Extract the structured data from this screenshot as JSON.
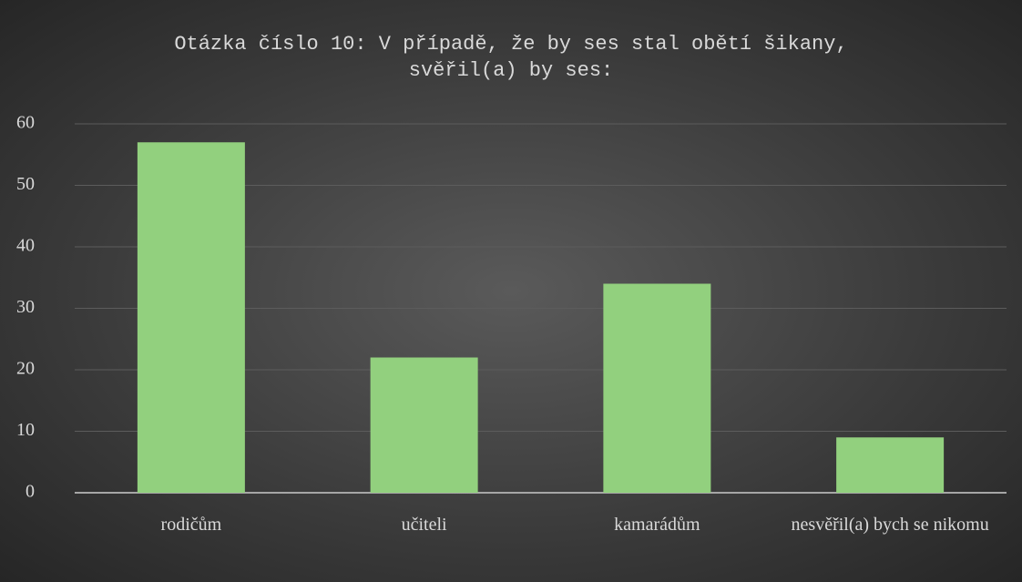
{
  "chart_data": {
    "type": "bar",
    "title": "Otázka číslo 10: V případě, že by ses stal obětí šikany, svěřil(a) by ses:",
    "categories": [
      "rodičům",
      "učiteli",
      "kamarádům",
      "nesvěřil(a) bych se nikomu"
    ],
    "values": [
      57,
      22,
      34,
      9
    ],
    "color": "#92d07e",
    "ylim": [
      0,
      60
    ],
    "yticks": [
      0,
      10,
      20,
      30,
      40,
      50,
      60
    ],
    "grid": true
  }
}
